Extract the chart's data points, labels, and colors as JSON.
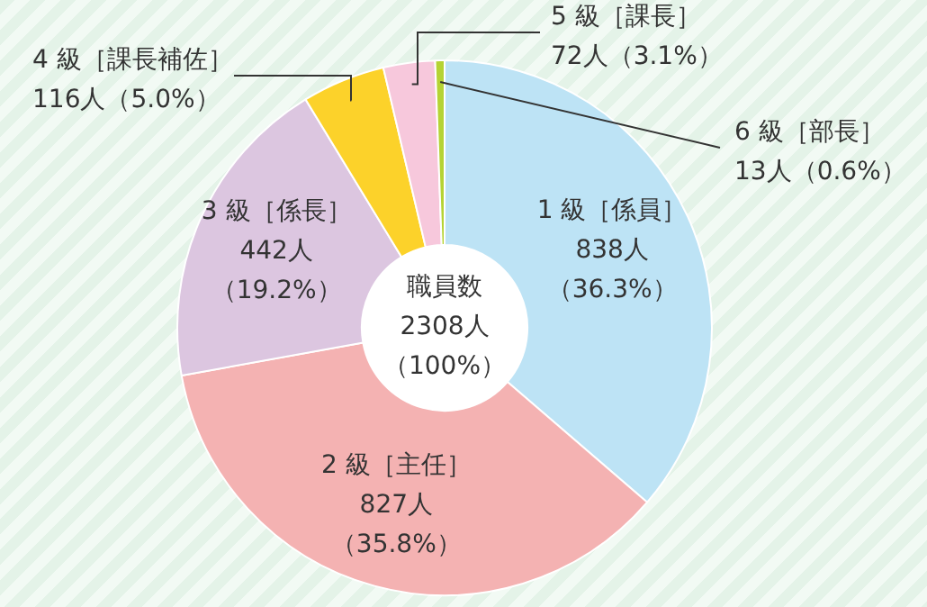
{
  "chart_data": {
    "type": "donut",
    "categories": [
      "1 級［係員］",
      "2 級［主任］",
      "3 級［係長］",
      "4 級［課長補佐］",
      "5 級［課長］",
      "6 級［部長］"
    ],
    "values": [
      838,
      827,
      442,
      116,
      72,
      13
    ],
    "colors": [
      "#bde3f5",
      "#f4b2b2",
      "#dcc6e0",
      "#fcd22a",
      "#f7c8dc",
      "#b5d334"
    ],
    "value_labels": [
      "838人（36.3%）",
      "827人（35.8%）",
      "442人（19.2%）",
      "116人（5.0%）",
      "72人（3.1%）",
      "13人（0.6%）"
    ],
    "annotations": [
      "職員数",
      "2308人",
      "（100%）"
    ],
    "legend": false
  }
}
